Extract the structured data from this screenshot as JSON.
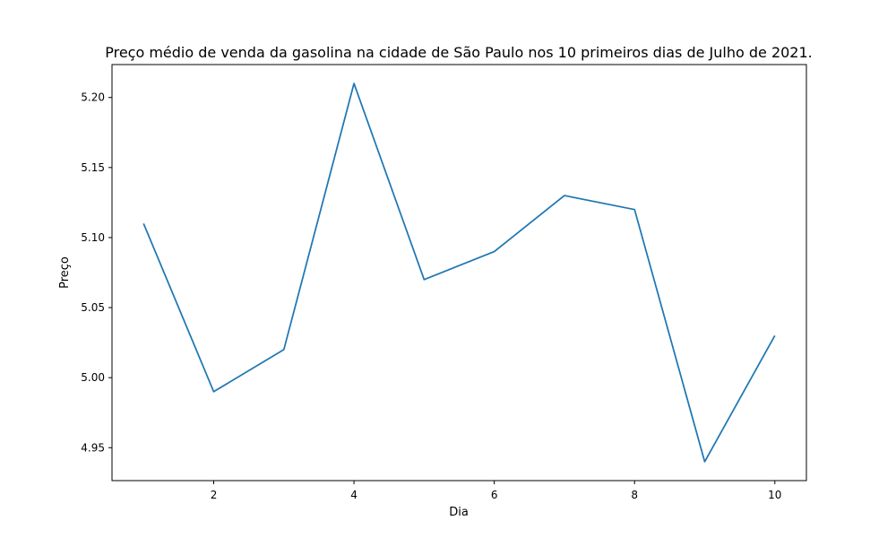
{
  "chart_data": {
    "type": "line",
    "title": "Preço médio de venda da gasolina na cidade de São Paulo nos 10 primeiros dias de Julho de 2021.",
    "xlabel": "Dia",
    "ylabel": "Preço",
    "x": [
      1,
      2,
      3,
      4,
      5,
      6,
      7,
      8,
      9,
      10
    ],
    "series": [
      {
        "values": [
          5.11,
          4.99,
          5.02,
          5.21,
          5.07,
          5.09,
          5.13,
          5.12,
          4.94,
          5.03
        ],
        "color": "#1f77b4"
      }
    ],
    "xlim": [
      0.55,
      10.45
    ],
    "ylim": [
      4.9265,
      5.2235
    ],
    "xticks": [
      2,
      4,
      6,
      8,
      10
    ],
    "yticks": [
      4.95,
      5.0,
      5.05,
      5.1,
      5.15,
      5.2
    ],
    "xtick_labels": [
      "2",
      "4",
      "6",
      "8",
      "10"
    ],
    "ytick_labels": [
      "4.95",
      "5.00",
      "5.05",
      "5.10",
      "5.15",
      "5.20"
    ],
    "grid": false,
    "legend": "none"
  }
}
